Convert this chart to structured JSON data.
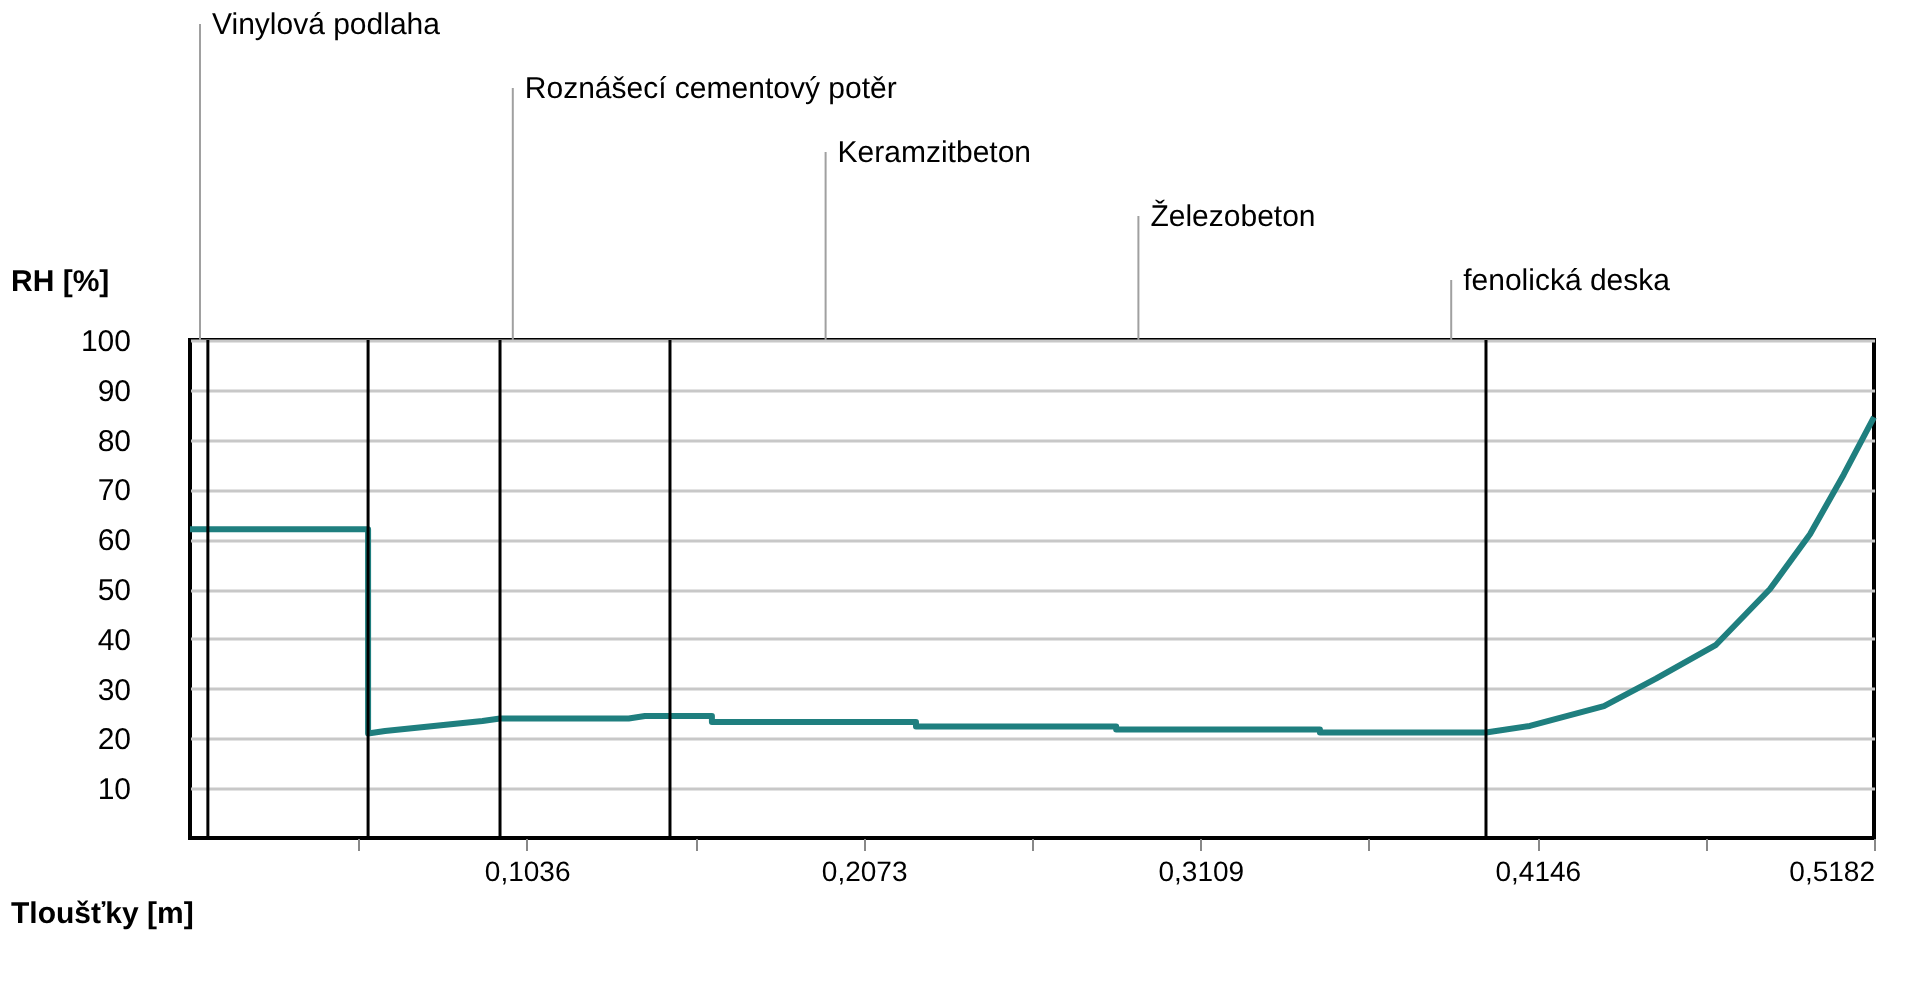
{
  "chart_data": {
    "type": "line",
    "xlabel": "Tloušťky [m]",
    "ylabel": "RH [%]",
    "series": [
      {
        "color": "#1f7f7f",
        "x": [
          0,
          0.0548,
          0.0548,
          0.06,
          0.075,
          0.09,
          0.0954,
          0.135,
          0.14,
          0.1477,
          0.1606,
          0.1606,
          0.2234,
          0.2234,
          0.285,
          0.285,
          0.3477,
          0.3477,
          0.3988,
          0.4123,
          0.4351,
          0.4511,
          0.4696,
          0.4862,
          0.4985,
          0.5089,
          0.5182
        ],
        "values": [
          62,
          62,
          21,
          21.5,
          22.5,
          23.5,
          24,
          24,
          24.5,
          24.5,
          24.5,
          23.3,
          23.3,
          22.4,
          22.4,
          21.8,
          21.8,
          21.2,
          21.2,
          22.5,
          26.5,
          32,
          38.8,
          50,
          61,
          73,
          84.5
        ]
      }
    ],
    "xlim": [
      0,
      0.5182
    ],
    "xticks": [
      {
        "value": 0.0518,
        "label": null
      },
      {
        "value": 0.1036,
        "label": "0,1036"
      },
      {
        "value": 0.1555,
        "label": null
      },
      {
        "value": 0.2073,
        "label": "0,2073"
      },
      {
        "value": 0.2591,
        "label": null
      },
      {
        "value": 0.3109,
        "label": "0,3109"
      },
      {
        "value": 0.3627,
        "label": null
      },
      {
        "value": 0.4146,
        "label": "0,4146"
      },
      {
        "value": 0.4664,
        "label": null
      },
      {
        "value": 0.5182,
        "label": "0,5182"
      }
    ],
    "ylim": [
      0,
      100
    ],
    "yticks": [
      10,
      20,
      30,
      40,
      50,
      60,
      70,
      80,
      90,
      100
    ],
    "grid": "y",
    "ref_lines": [
      {
        "axis": "x",
        "value": 0.0055,
        "color": "#000000"
      },
      {
        "axis": "x",
        "value": 0.0548,
        "color": "#000000"
      },
      {
        "axis": "x",
        "value": 0.0954,
        "color": "#000000"
      },
      {
        "axis": "x",
        "value": 0.1477,
        "color": "#000000"
      },
      {
        "axis": "x",
        "value": 0.3988,
        "color": "#000000"
      }
    ],
    "annotations": [
      "Vinylová podlaha",
      "Roznášecí cementový potěr",
      "Keramzitbeton",
      "Železobeton",
      "fenolická deska"
    ]
  }
}
